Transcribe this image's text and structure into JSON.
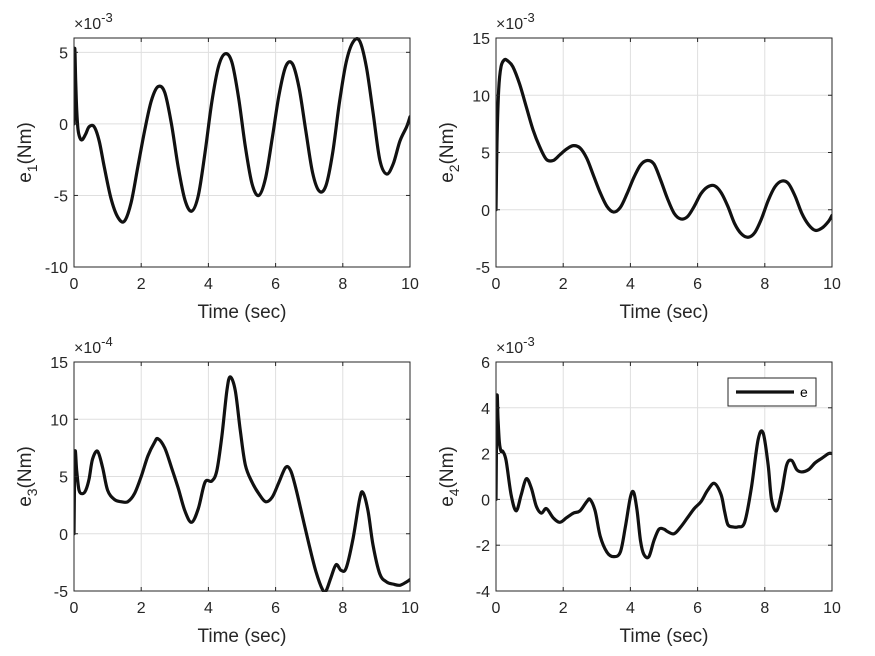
{
  "chart_data": [
    {
      "type": "line",
      "id": "e1",
      "ylabel_main": "e",
      "ylabel_sub": "1",
      "ylabel_unit": "(Nm)",
      "xlabel": "Time (sec)",
      "exponent_base": "×10",
      "exponent_power": "-3",
      "xlim": [
        0,
        10
      ],
      "ylim": [
        -10,
        6
      ],
      "xticks": [
        0,
        2,
        4,
        6,
        8,
        10
      ],
      "yticks": [
        -10,
        -5,
        0,
        5
      ],
      "series": [
        {
          "name": "e",
          "x": [
            0,
            0.02,
            0.05,
            0.08,
            0.12,
            0.18,
            0.25,
            0.35,
            0.45,
            0.6,
            0.75,
            0.9,
            1.1,
            1.3,
            1.5,
            1.7,
            1.9,
            2.1,
            2.3,
            2.5,
            2.7,
            2.9,
            3.1,
            3.3,
            3.5,
            3.7,
            3.9,
            4.1,
            4.3,
            4.5,
            4.7,
            4.9,
            5.1,
            5.3,
            5.5,
            5.7,
            5.9,
            6.1,
            6.3,
            6.5,
            6.7,
            6.9,
            7.1,
            7.3,
            7.5,
            7.7,
            7.9,
            8.1,
            8.3,
            8.5,
            8.7,
            8.9,
            9.1,
            9.3,
            9.5,
            9.7,
            9.9,
            10
          ],
          "values": [
            0,
            5.2,
            3,
            1,
            -0.4,
            -1,
            -1.1,
            -0.7,
            -0.2,
            -0.2,
            -1.2,
            -3,
            -5.2,
            -6.5,
            -6.8,
            -5.5,
            -3,
            -0.5,
            1.6,
            2.6,
            2.2,
            0,
            -3,
            -5.3,
            -6.1,
            -5,
            -2,
            1.5,
            4,
            4.9,
            4.3,
            1.8,
            -1.6,
            -4.2,
            -5,
            -3.8,
            -1,
            2,
            4,
            4.2,
            2.5,
            -0.5,
            -3.4,
            -4.7,
            -4.3,
            -2,
            1.5,
            4.3,
            5.7,
            5.8,
            4,
            0.8,
            -2.5,
            -3.5,
            -2.8,
            -1.2,
            -0.2,
            0.5
          ]
        }
      ]
    },
    {
      "type": "line",
      "id": "e2",
      "ylabel_main": "e",
      "ylabel_sub": "2",
      "ylabel_unit": "(Nm)",
      "xlabel": "Time (sec)",
      "exponent_base": "×10",
      "exponent_power": "-3",
      "xlim": [
        0,
        10
      ],
      "ylim": [
        -5,
        15
      ],
      "xticks": [
        0,
        2,
        4,
        6,
        8,
        10
      ],
      "yticks": [
        -5,
        0,
        5,
        10,
        15
      ],
      "series": [
        {
          "name": "e",
          "x": [
            0,
            0.03,
            0.08,
            0.15,
            0.25,
            0.35,
            0.5,
            0.7,
            0.9,
            1.1,
            1.3,
            1.5,
            1.7,
            1.9,
            2.1,
            2.3,
            2.5,
            2.7,
            2.9,
            3.1,
            3.3,
            3.5,
            3.7,
            3.9,
            4.1,
            4.3,
            4.5,
            4.7,
            4.9,
            5.1,
            5.3,
            5.5,
            5.7,
            5.9,
            6.1,
            6.3,
            6.5,
            6.7,
            6.9,
            7.1,
            7.3,
            7.5,
            7.7,
            7.9,
            8.1,
            8.3,
            8.5,
            8.7,
            8.9,
            9.1,
            9.3,
            9.5,
            9.7,
            9.9,
            10
          ],
          "values": [
            0,
            6,
            10.5,
            12.5,
            13.1,
            13,
            12.5,
            11,
            9,
            7,
            5.5,
            4.4,
            4.3,
            4.8,
            5.3,
            5.6,
            5.4,
            4.5,
            3,
            1.5,
            0.3,
            -0.2,
            0.2,
            1.4,
            2.8,
            3.9,
            4.3,
            4,
            2.6,
            1,
            -0.3,
            -0.8,
            -0.6,
            0.3,
            1.4,
            2,
            2.1,
            1.5,
            0.3,
            -1.2,
            -2.1,
            -2.4,
            -2,
            -0.8,
            0.8,
            2,
            2.5,
            2.3,
            1.2,
            -0.3,
            -1.3,
            -1.8,
            -1.6,
            -1,
            -0.5
          ]
        }
      ]
    },
    {
      "type": "line",
      "id": "e3",
      "ylabel_main": "e",
      "ylabel_sub": "3",
      "ylabel_unit": "(Nm)",
      "xlabel": "Time (sec)",
      "exponent_base": "×10",
      "exponent_power": "-4",
      "xlim": [
        0,
        10
      ],
      "ylim": [
        -5,
        15
      ],
      "xticks": [
        0,
        2,
        4,
        6,
        8,
        10
      ],
      "yticks": [
        -5,
        0,
        5,
        10,
        15
      ],
      "series": [
        {
          "name": "e",
          "x": [
            0,
            0.03,
            0.08,
            0.15,
            0.25,
            0.35,
            0.45,
            0.55,
            0.7,
            0.85,
            1.0,
            1.2,
            1.4,
            1.6,
            1.8,
            2.0,
            2.2,
            2.4,
            2.5,
            2.7,
            2.9,
            3.1,
            3.3,
            3.5,
            3.7,
            3.9,
            4.1,
            4.25,
            4.4,
            4.55,
            4.65,
            4.8,
            4.95,
            5.1,
            5.3,
            5.5,
            5.7,
            5.9,
            6.1,
            6.3,
            6.45,
            6.6,
            6.8,
            7.0,
            7.2,
            7.4,
            7.5,
            7.65,
            7.8,
            7.95,
            8.1,
            8.3,
            8.5,
            8.6,
            8.75,
            8.9,
            9.1,
            9.3,
            9.5,
            9.7,
            9.9,
            10
          ],
          "values": [
            0,
            7,
            5.5,
            3.8,
            3.5,
            3.8,
            4.8,
            6.5,
            7.2,
            5.8,
            3.8,
            3,
            2.8,
            2.8,
            3.5,
            5,
            6.8,
            8,
            8.3,
            7.5,
            5.8,
            4,
            2,
            1,
            2.2,
            4.5,
            4.6,
            5.5,
            8.5,
            12.5,
            13.7,
            12.5,
            9,
            6,
            4.5,
            3.5,
            2.8,
            3.2,
            4.5,
            5.8,
            5.5,
            4,
            1.5,
            -1,
            -3.3,
            -4.9,
            -5,
            -3.8,
            -2.7,
            -3.2,
            -3,
            -0.5,
            3,
            3.6,
            2,
            -1,
            -3.5,
            -4.2,
            -4.4,
            -4.5,
            -4.2,
            -4
          ]
        }
      ]
    },
    {
      "type": "line",
      "id": "e4",
      "ylabel_main": "e",
      "ylabel_sub": "4",
      "ylabel_unit": "(Nm)",
      "xlabel": "Time (sec)",
      "exponent_base": "×10",
      "exponent_power": "-3",
      "xlim": [
        0,
        10
      ],
      "ylim": [
        -4,
        6
      ],
      "xticks": [
        0,
        2,
        4,
        6,
        8,
        10
      ],
      "yticks": [
        -4,
        -2,
        0,
        2,
        4,
        6
      ],
      "legend": {
        "label": "e",
        "position": "top-right"
      },
      "series": [
        {
          "name": "e",
          "x": [
            0,
            0.03,
            0.06,
            0.1,
            0.15,
            0.2,
            0.3,
            0.45,
            0.6,
            0.75,
            0.9,
            1.05,
            1.2,
            1.35,
            1.5,
            1.7,
            1.9,
            2.1,
            2.3,
            2.5,
            2.7,
            2.8,
            2.95,
            3.1,
            3.3,
            3.5,
            3.7,
            3.85,
            4.0,
            4.1,
            4.2,
            4.3,
            4.4,
            4.55,
            4.7,
            4.85,
            5.0,
            5.1,
            5.3,
            5.5,
            5.7,
            5.9,
            6.1,
            6.3,
            6.5,
            6.7,
            6.8,
            6.9,
            7.05,
            7.2,
            7.4,
            7.6,
            7.8,
            7.95,
            8.1,
            8.2,
            8.35,
            8.5,
            8.65,
            8.8,
            8.95,
            9.1,
            9.3,
            9.5,
            9.7,
            9.9,
            10
          ],
          "values": [
            0,
            4.4,
            3.5,
            2.5,
            2.1,
            2.1,
            1.7,
            0.2,
            -0.5,
            0.2,
            0.9,
            0.5,
            -0.3,
            -0.6,
            -0.4,
            -0.8,
            -1,
            -0.8,
            -0.6,
            -0.5,
            -0.1,
            0,
            -0.5,
            -1.6,
            -2.3,
            -2.5,
            -2.3,
            -1.2,
            0.1,
            0.3,
            -0.5,
            -1.8,
            -2.4,
            -2.5,
            -1.8,
            -1.3,
            -1.3,
            -1.4,
            -1.5,
            -1.2,
            -0.8,
            -0.4,
            -0.1,
            0.4,
            0.7,
            0.2,
            -0.5,
            -1.1,
            -1.2,
            -1.2,
            -1,
            0.5,
            2.6,
            2.9,
            1.5,
            0,
            -0.5,
            0.3,
            1.5,
            1.7,
            1.3,
            1.2,
            1.3,
            1.6,
            1.8,
            2.0,
            2.0
          ]
        }
      ]
    }
  ]
}
